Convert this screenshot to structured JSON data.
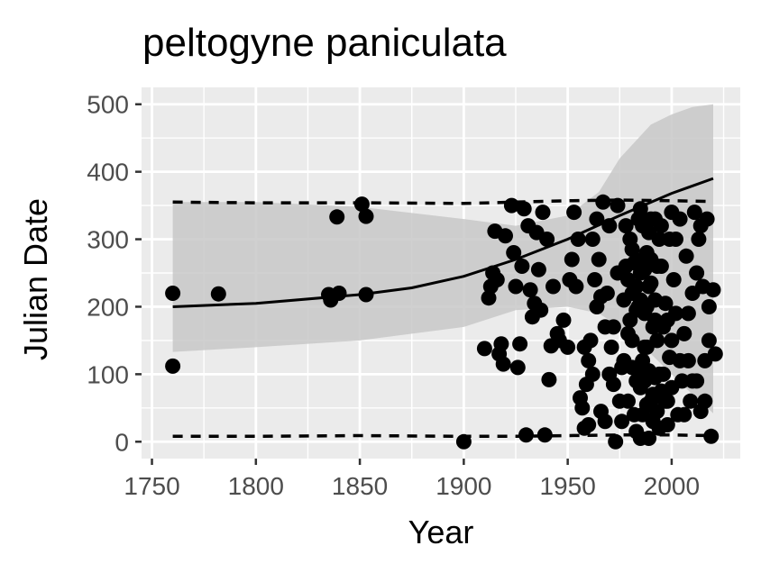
{
  "chart_data": {
    "type": "scatter",
    "title": "peltogyne paniculata",
    "xlabel": "Year",
    "ylabel": "Julian Date",
    "xlim": [
      1745,
      2033
    ],
    "ylim": [
      -25,
      525
    ],
    "x_ticks": [
      1750,
      1800,
      1850,
      1900,
      1950,
      2000
    ],
    "y_ticks": [
      0,
      100,
      200,
      300,
      400,
      500
    ],
    "grid": true,
    "legend": "none",
    "colors": {
      "panel": "#ebebeb",
      "grid": "#ffffff",
      "points": "#000000",
      "ribbon": "#c8c8c8",
      "tick": "#333333",
      "tick_label": "#4d4d4d"
    },
    "fit_line": {
      "x": [
        1760,
        1800,
        1850,
        1875,
        1900,
        1925,
        1950,
        1975,
        2000,
        2020
      ],
      "y": [
        200,
        205,
        218,
        228,
        245,
        270,
        300,
        335,
        368,
        390
      ]
    },
    "ribbon": {
      "x": [
        1760,
        1800,
        1850,
        1900,
        1925,
        1950,
        1965,
        1975,
        1990,
        2000,
        2010,
        2020
      ],
      "lower": [
        133,
        140,
        150,
        170,
        195,
        200,
        190,
        170,
        130,
        100,
        70,
        42
      ],
      "upper": [
        355,
        355,
        348,
        330,
        320,
        335,
        370,
        420,
        470,
        485,
        496,
        500
      ]
    },
    "upper_bound": {
      "x": [
        1760,
        1800,
        1850,
        1900,
        1925,
        1950,
        1975,
        2000,
        2020
      ],
      "y": [
        355,
        354,
        354,
        353,
        355,
        357,
        358,
        357,
        356
      ]
    },
    "lower_bound": {
      "x": [
        1760,
        1800,
        1850,
        1900,
        1925,
        1950,
        1975,
        2000,
        2020
      ],
      "y": [
        8,
        8,
        9,
        8,
        8,
        9,
        10,
        10,
        9
      ]
    },
    "points": [
      [
        1760,
        220
      ],
      [
        1760,
        112
      ],
      [
        1782,
        219
      ],
      [
        1835,
        218
      ],
      [
        1836,
        210
      ],
      [
        1839,
        333
      ],
      [
        1840,
        220
      ],
      [
        1851,
        352
      ],
      [
        1853,
        218
      ],
      [
        1853,
        334
      ],
      [
        1900,
        0
      ],
      [
        1910,
        138
      ],
      [
        1912,
        213
      ],
      [
        1913,
        230
      ],
      [
        1914,
        250
      ],
      [
        1915,
        312
      ],
      [
        1916,
        240
      ],
      [
        1917,
        130
      ],
      [
        1918,
        145
      ],
      [
        1919,
        115
      ],
      [
        1920,
        305
      ],
      [
        1923,
        350
      ],
      [
        1924,
        280
      ],
      [
        1925,
        230
      ],
      [
        1926,
        110
      ],
      [
        1927,
        145
      ],
      [
        1928,
        260
      ],
      [
        1929,
        345
      ],
      [
        1930,
        10
      ],
      [
        1931,
        320
      ],
      [
        1932,
        225
      ],
      [
        1933,
        185
      ],
      [
        1934,
        205
      ],
      [
        1935,
        310
      ],
      [
        1936,
        255
      ],
      [
        1937,
        195
      ],
      [
        1938,
        340
      ],
      [
        1939,
        10
      ],
      [
        1940,
        300
      ],
      [
        1941,
        92
      ],
      [
        1942,
        142
      ],
      [
        1943,
        230
      ],
      [
        1945,
        160
      ],
      [
        1946,
        150
      ],
      [
        1948,
        180
      ],
      [
        1950,
        140
      ],
      [
        1951,
        240
      ],
      [
        1952,
        270
      ],
      [
        1953,
        340
      ],
      [
        1954,
        230
      ],
      [
        1955,
        300
      ],
      [
        1956,
        65
      ],
      [
        1957,
        50
      ],
      [
        1958,
        20
      ],
      [
        1959,
        85
      ],
      [
        1960,
        120
      ],
      [
        1961,
        150
      ],
      [
        1962,
        300
      ],
      [
        1963,
        240
      ],
      [
        1964,
        200
      ],
      [
        1965,
        270
      ],
      [
        1966,
        45
      ],
      [
        1967,
        355
      ],
      [
        1968,
        30
      ],
      [
        1969,
        220
      ],
      [
        1970,
        100
      ],
      [
        1971,
        140
      ],
      [
        1972,
        170
      ],
      [
        1973,
        0
      ],
      [
        1974,
        350
      ],
      [
        1975,
        60
      ],
      [
        1976,
        110
      ],
      [
        1977,
        210
      ],
      [
        1978,
        320
      ],
      [
        1979,
        160
      ],
      [
        1980,
        300
      ],
      [
        1981,
        220
      ],
      [
        1982,
        40
      ],
      [
        1983,
        90
      ],
      [
        1984,
        330
      ],
      [
        1985,
        250
      ],
      [
        1986,
        120
      ],
      [
        1987,
        190
      ],
      [
        1988,
        280
      ],
      [
        1989,
        5
      ],
      [
        1990,
        330
      ],
      [
        1991,
        70
      ],
      [
        1992,
        210
      ],
      [
        1993,
        150
      ],
      [
        1994,
        20
      ],
      [
        1995,
        260
      ],
      [
        1996,
        100
      ],
      [
        1997,
        60
      ],
      [
        1998,
        180
      ],
      [
        1999,
        300
      ],
      [
        2000,
        80
      ],
      [
        2001,
        240
      ],
      [
        2002,
        190
      ],
      [
        2003,
        40
      ],
      [
        2004,
        330
      ],
      [
        2005,
        90
      ],
      [
        2006,
        160
      ],
      [
        2007,
        275
      ],
      [
        2008,
        120
      ],
      [
        2009,
        60
      ],
      [
        2010,
        220
      ],
      [
        2011,
        340
      ],
      [
        2012,
        90
      ],
      [
        2013,
        300
      ],
      [
        2014,
        45
      ],
      [
        2015,
        230
      ],
      [
        2016,
        120
      ],
      [
        2017,
        330
      ],
      [
        2018,
        150
      ],
      [
        2019,
        8
      ],
      [
        2020,
        225
      ],
      [
        2021,
        130
      ],
      [
        1980,
        180
      ],
      [
        1982,
        265
      ],
      [
        1984,
        110
      ],
      [
        1986,
        320
      ],
      [
        1988,
        55
      ],
      [
        1990,
        235
      ],
      [
        1992,
        95
      ],
      [
        1994,
        300
      ],
      [
        1996,
        170
      ],
      [
        1998,
        25
      ],
      [
        2000,
        340
      ],
      [
        1984,
        200
      ],
      [
        1987,
        140
      ],
      [
        1989,
        310
      ],
      [
        1991,
        30
      ],
      [
        1993,
        260
      ],
      [
        1995,
        75
      ],
      [
        1997,
        205
      ],
      [
        1999,
        125
      ],
      [
        1979,
        240
      ],
      [
        1981,
        150
      ],
      [
        1983,
        15
      ],
      [
        1985,
        345
      ],
      [
        1987,
        90
      ],
      [
        1989,
        230
      ],
      [
        1991,
        170
      ],
      [
        1993,
        45
      ],
      [
        1995,
        320
      ],
      [
        1977,
        120
      ],
      [
        1979,
        60
      ],
      [
        1981,
        285
      ],
      [
        1983,
        195
      ],
      [
        1985,
        5
      ],
      [
        1987,
        255
      ],
      [
        1989,
        105
      ],
      [
        1968,
        170
      ],
      [
        1970,
        320
      ],
      [
        1972,
        85
      ],
      [
        1974,
        250
      ],
      [
        1976,
        30
      ],
      [
        1962,
        100
      ],
      [
        1964,
        330
      ],
      [
        1966,
        215
      ],
      [
        1958,
        140
      ],
      [
        1960,
        25
      ],
      [
        2008,
        190
      ],
      [
        2010,
        90
      ],
      [
        2012,
        250
      ],
      [
        2014,
        320
      ],
      [
        2016,
        60
      ],
      [
        2018,
        200
      ],
      [
        2004,
        120
      ],
      [
        2006,
        40
      ],
      [
        2002,
        300
      ],
      [
        1998,
        60
      ],
      [
        2000,
        150
      ],
      [
        1985,
        210
      ],
      [
        1986,
        40
      ],
      [
        1988,
        140
      ],
      [
        1990,
        270
      ],
      [
        1992,
        180
      ],
      [
        1994,
        100
      ],
      [
        1990,
        60
      ],
      [
        1992,
        330
      ],
      [
        1986,
        270
      ],
      [
        1988,
        200
      ],
      [
        1983,
        230
      ],
      [
        1985,
        80
      ],
      [
        1981,
        110
      ],
      [
        1978,
        260
      ]
    ]
  }
}
